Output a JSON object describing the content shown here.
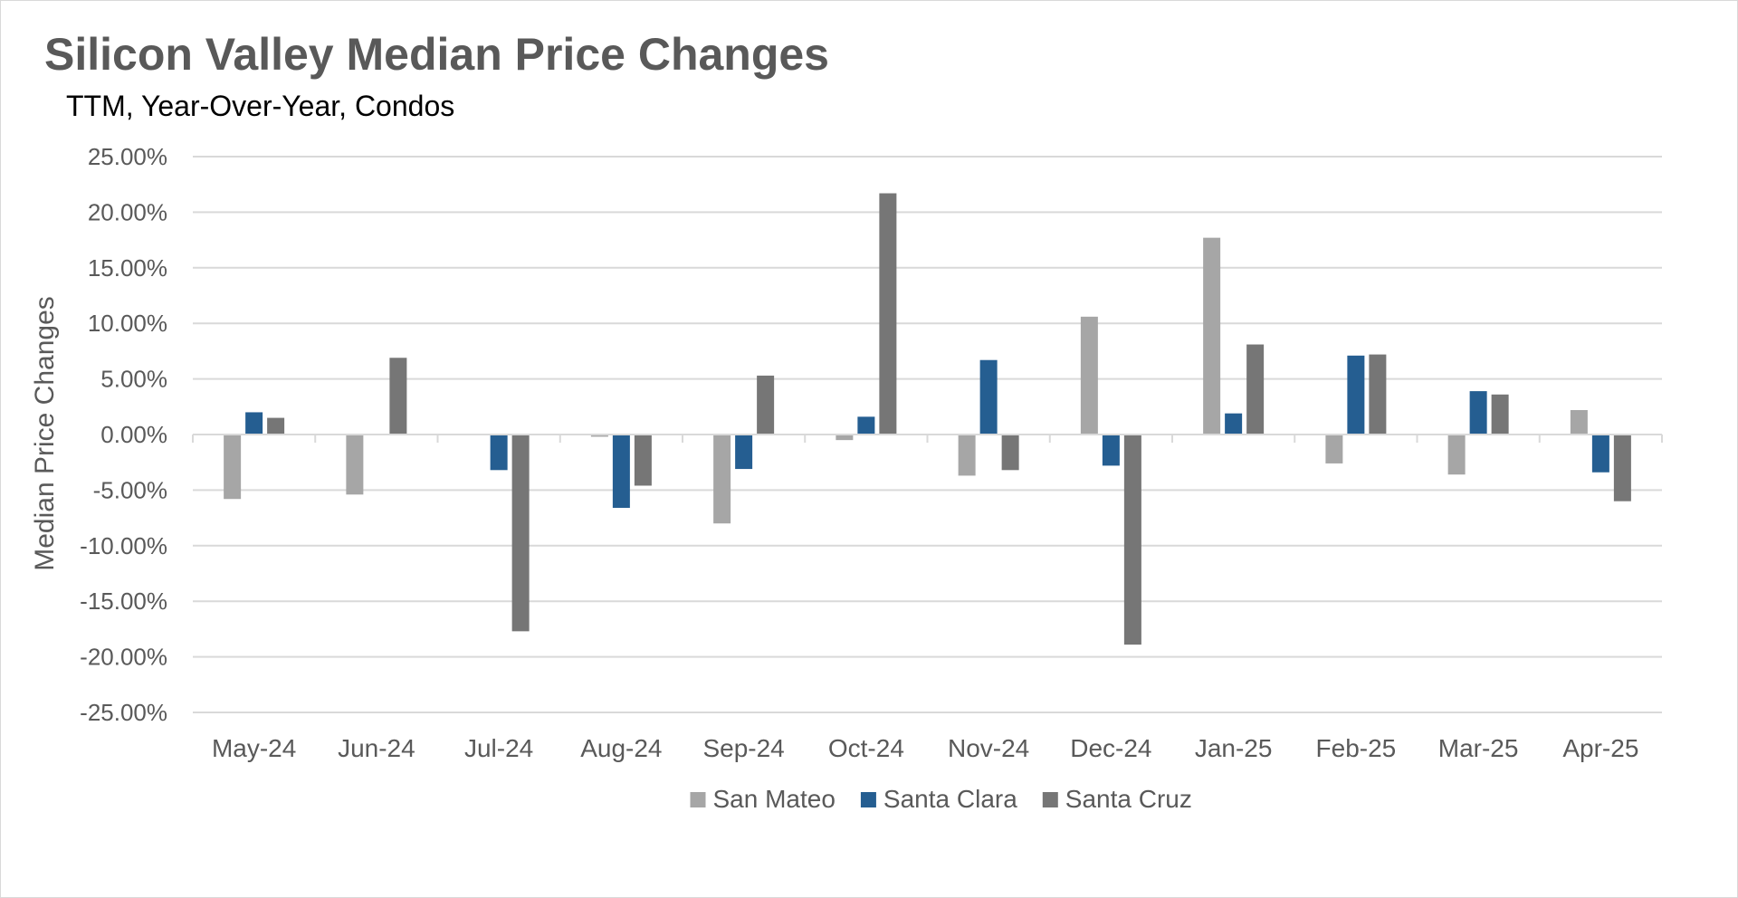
{
  "chart_data": {
    "type": "bar",
    "title": "Silicon Valley Median Price Changes",
    "subtitle": "TTM, Year-Over-Year,  Condos",
    "xlabel": "",
    "ylabel": "Median Price Changes",
    "ylim": [
      -25,
      25
    ],
    "ytick_step": 5,
    "ytick_labels": [
      "25.00%",
      "20.00%",
      "15.00%",
      "10.00%",
      "5.00%",
      "0.00%",
      "-5.00%",
      "-10.00%",
      "-15.00%",
      "-20.00%",
      "-25.00%"
    ],
    "grid": true,
    "legend_position": "bottom",
    "categories": [
      "May-24",
      "Jun-24",
      "Jul-24",
      "Aug-24",
      "Sep-24",
      "Oct-24",
      "Nov-24",
      "Dec-24",
      "Jan-25",
      "Feb-25",
      "Mar-25",
      "Apr-25"
    ],
    "series": [
      {
        "name": "San Mateo",
        "color": "#a6a6a6",
        "values": [
          -5.8,
          -5.4,
          0,
          -0.2,
          -8.0,
          -0.5,
          -3.7,
          10.6,
          17.7,
          -2.6,
          -3.6,
          2.2
        ]
      },
      {
        "name": "Santa Clara",
        "color": "#255e91",
        "values": [
          2.0,
          0,
          -3.2,
          -6.6,
          -3.1,
          1.6,
          6.7,
          -2.8,
          1.9,
          7.1,
          3.9,
          -3.4
        ]
      },
      {
        "name": "Santa Cruz",
        "color": "#767676",
        "values": [
          1.5,
          6.9,
          -17.7,
          -4.6,
          5.3,
          21.7,
          -3.2,
          -18.9,
          8.1,
          7.2,
          3.6,
          -6.0
        ]
      }
    ]
  }
}
